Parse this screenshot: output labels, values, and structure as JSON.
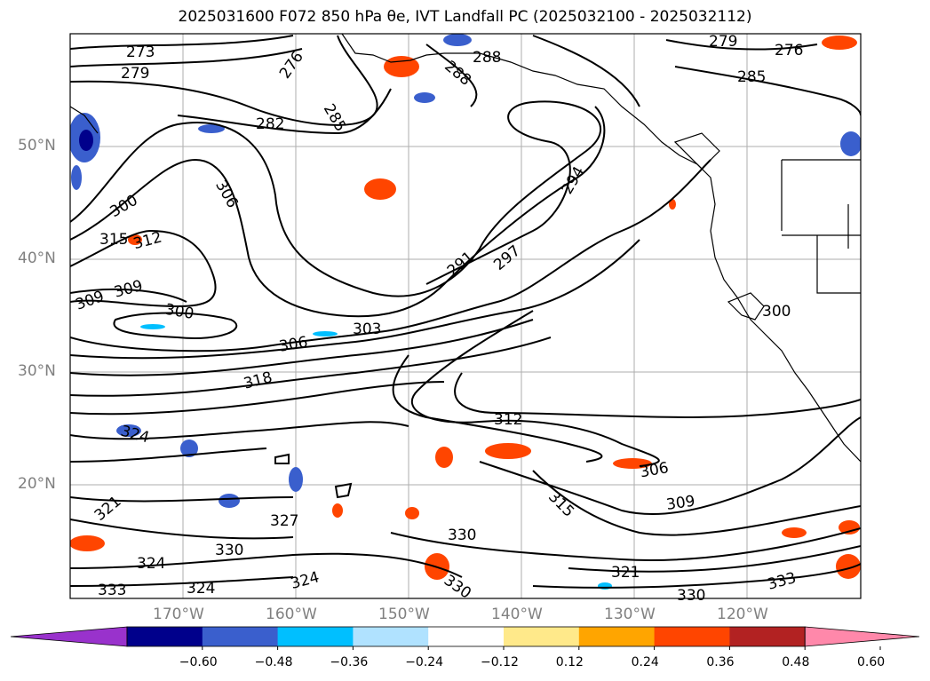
{
  "title": "2025031600 F072 850 hPa θe, IVT Landfall PC (2025032100 - 2025032112)",
  "latitude_labels": [
    "50°N",
    "40°N",
    "30°N",
    "20°N"
  ],
  "longitude_labels": [
    "170°W",
    "160°W",
    "150°W",
    "140°W",
    "130°W",
    "120°W"
  ],
  "contour_labels": [
    "273",
    "279",
    "276",
    "288",
    "285",
    "282",
    "288",
    "306",
    "300",
    "315",
    "312",
    "309",
    "309",
    "300",
    "306",
    "303",
    "318",
    "291",
    "297",
    "294",
    "312",
    "306",
    "309",
    "315",
    "324",
    "321",
    "327",
    "330",
    "324",
    "333",
    "324",
    "330",
    "321",
    "330",
    "324",
    "333",
    "330",
    "276",
    "279",
    "285",
    "300"
  ],
  "colorbar": {
    "ticks": [
      "−0.60",
      "−0.48",
      "−0.36",
      "−0.24",
      "−0.12",
      "0.12",
      "0.24",
      "0.36",
      "0.48",
      "0.60"
    ],
    "colors": [
      "#9932cc",
      "#00008b",
      "#3a5fcd",
      "#00bfff",
      "#b0e2ff",
      "#ffffff",
      "#ffe98a",
      "#ffa500",
      "#ff4500",
      "#b22222",
      "#ff88aa"
    ]
  }
}
